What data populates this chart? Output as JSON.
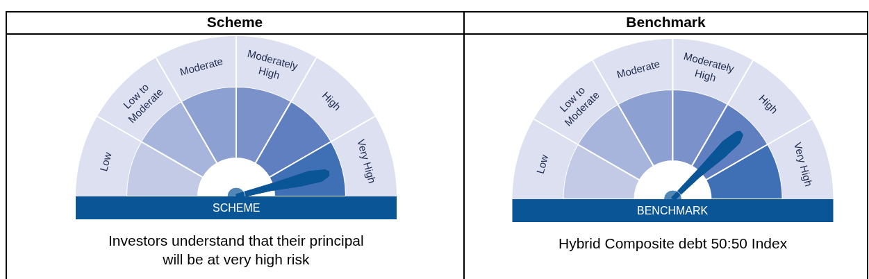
{
  "chart_data": [
    {
      "type": "donut",
      "title": "Scheme",
      "categories": [
        "Low",
        "Low to Moderate",
        "Moderate",
        "Moderately High",
        "High",
        "Very High"
      ],
      "values": [
        16.7,
        16.7,
        16.7,
        16.7,
        16.7,
        16.7
      ],
      "colors": [
        "#c3cae6",
        "#a7b4dc",
        "#8ca0d1",
        "#7a91c9",
        "#5f7fc0",
        "#3f6fb4"
      ],
      "needle": "Very High",
      "annotations": [
        "SCHEME",
        "Investors understand that their principal will be at very high risk"
      ]
    },
    {
      "type": "donut",
      "title": "Benchmark",
      "categories": [
        "Low",
        "Low to Moderate",
        "Moderate",
        "Moderately High",
        "High",
        "Very High"
      ],
      "values": [
        16.7,
        16.7,
        16.7,
        16.7,
        16.7,
        16.7
      ],
      "colors": [
        "#c3cae6",
        "#a7b4dc",
        "#8ca0d1",
        "#7a91c9",
        "#5f7fc0",
        "#3f6fb4"
      ],
      "needle": "High",
      "annotations": [
        "BENCHMARK",
        "Hybrid Composite debt 50:50 Index"
      ]
    }
  ]
}
